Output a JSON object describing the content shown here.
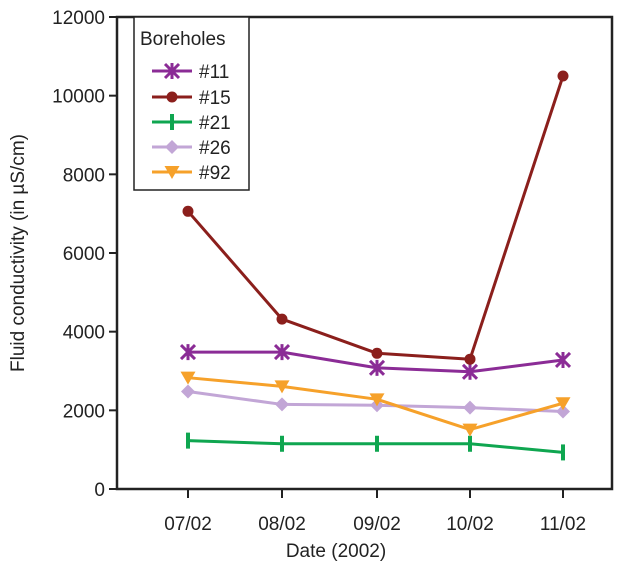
{
  "chart_data": {
    "type": "line",
    "title": "",
    "xlabel": "Date (2002)",
    "ylabel": "Fluid conductivity  (in µS/cm)",
    "categories": [
      "07/02",
      "08/02",
      "09/02",
      "10/02",
      "11/02"
    ],
    "ylim": [
      0,
      12000
    ],
    "yticks": [
      "0",
      "2000",
      "4000",
      "6000",
      "8000",
      "10000",
      "12000"
    ],
    "grid": false,
    "legend": {
      "title": "Boreholes",
      "placement": "top-left"
    },
    "series": [
      {
        "name": "#11",
        "values": [
          3480,
          3480,
          3080,
          2980,
          3280
        ],
        "color": "#8b2c96",
        "marker": "asterisk"
      },
      {
        "name": "#15",
        "values": [
          7060,
          4320,
          3450,
          3300,
          10500
        ],
        "color": "#8b1f1c",
        "marker": "circle"
      },
      {
        "name": "#21",
        "values": [
          1230,
          1150,
          1150,
          1150,
          930
        ],
        "color": "#0fa650",
        "marker": "bar"
      },
      {
        "name": "#26",
        "values": [
          2480,
          2150,
          2130,
          2070,
          1970
        ],
        "color": "#c2a6d6",
        "marker": "diamond"
      },
      {
        "name": "#92",
        "values": [
          2830,
          2610,
          2280,
          1510,
          2180
        ],
        "color": "#f6a12a",
        "marker": "triangle-down"
      }
    ]
  }
}
